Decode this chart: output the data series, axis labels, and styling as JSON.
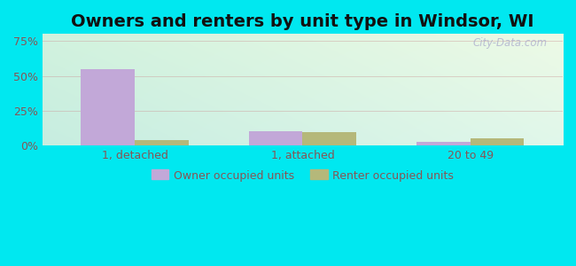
{
  "title": "Owners and renters by unit type in Windsor, WI",
  "categories": [
    "1, detached",
    "1, attached",
    "20 to 49"
  ],
  "owner_values": [
    0.545,
    0.1,
    0.03
  ],
  "renter_values": [
    0.04,
    0.095,
    0.055
  ],
  "owner_color": "#c2a8d8",
  "renter_color": "#b5b87a",
  "background_outer": "#00e8f0",
  "background_inner_topleft": "#c8ede0",
  "background_inner_topright": "#e8f5e0",
  "background_inner_bottom": "#daf5ec",
  "yticks": [
    0,
    0.25,
    0.5,
    0.75
  ],
  "ytick_labels": [
    "0%",
    "25%",
    "50%",
    "75%"
  ],
  "ylim": [
    0,
    0.8
  ],
  "bar_width": 0.32,
  "legend_owner": "Owner occupied units",
  "legend_renter": "Renter occupied units",
  "title_fontsize": 14,
  "tick_fontsize": 9,
  "legend_fontsize": 9,
  "watermark": "City-Data.com",
  "grid_color": "#cc9999",
  "tick_color": "#885555"
}
